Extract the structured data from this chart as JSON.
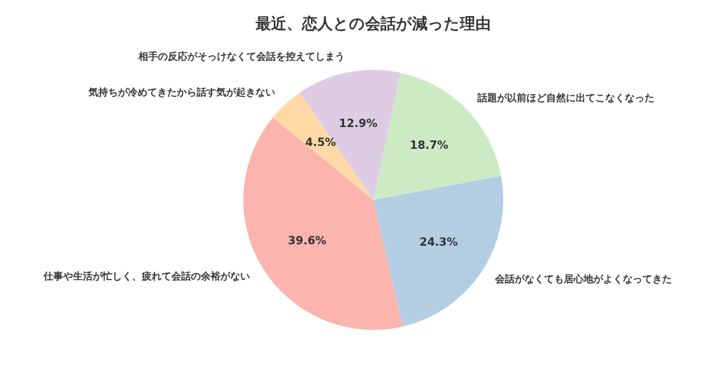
{
  "chart_data": {
    "type": "pie",
    "title": "最近、恋人との会話が減った理由",
    "categories": [
      "話題が以前ほど自然に出てこなくなった",
      "会話がなくても居心地がよくなってきた",
      "仕事や生活が忙しく、疲れて会話の余裕がない",
      "気持ちが冷めてきたから話す気が起きない",
      "相手の反応がそっけなくて会話を控えてしまう"
    ],
    "values": [
      18.7,
      24.3,
      39.6,
      4.5,
      12.9
    ],
    "colors": [
      "#ccebc5",
      "#b3cde3",
      "#fbb4ae",
      "#fed9a6",
      "#decbe4"
    ],
    "value_labels": [
      "18.7%",
      "24.3%",
      "39.6%",
      "4.5%",
      "12.9%"
    ]
  }
}
